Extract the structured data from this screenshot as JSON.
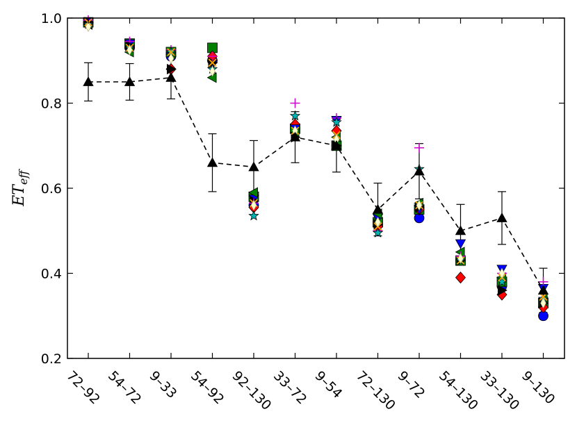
{
  "chart_data": {
    "type": "scatter",
    "title": "",
    "xlabel": "",
    "ylabel": {
      "main": "ET",
      "sub": "eff"
    },
    "ylim": [
      0.2,
      1.0
    ],
    "yticks": [
      "0.2",
      "0.4",
      "0.6",
      "0.8",
      "1.0"
    ],
    "categories": [
      "72–92",
      "54–72",
      "9–33",
      "54–92",
      "92–130",
      "33–72",
      "9–54",
      "72–130",
      "9–72",
      "54–130",
      "33–130",
      "9–130"
    ],
    "grid": false,
    "legend": "none",
    "series": [
      {
        "marker": "triangle-up",
        "color": "#000000",
        "line": "dashed",
        "values": [
          0.85,
          0.85,
          0.86,
          0.66,
          0.65,
          0.72,
          0.7,
          0.55,
          0.64,
          0.5,
          0.53,
          0.36
        ],
        "errors": [
          0.045,
          0.043,
          0.05,
          0.068,
          0.062,
          0.06,
          0.062,
          0.062,
          0.065,
          0.062,
          0.062,
          0.052
        ]
      },
      {
        "marker": "circle",
        "color": "#0000ff",
        "values": [
          0.99,
          0.93,
          0.91,
          0.9,
          0.56,
          0.74,
          0.7,
          0.52,
          0.53,
          0.43,
          0.37,
          0.3
        ]
      },
      {
        "marker": "square",
        "color": "#008000",
        "values": [
          0.99,
          0.94,
          0.92,
          0.93,
          0.58,
          0.74,
          0.7,
          0.52,
          0.55,
          0.43,
          0.38,
          0.33
        ]
      },
      {
        "marker": "diamond",
        "color": "#ff0000",
        "values": [
          0.99,
          0.93,
          0.88,
          0.91,
          0.555,
          0.75,
          0.735,
          0.51,
          0.55,
          0.39,
          0.35,
          0.32
        ]
      },
      {
        "marker": "triangle-down",
        "color": "#0000ff",
        "values": [
          0.99,
          0.94,
          0.91,
          0.89,
          0.575,
          0.74,
          0.76,
          0.53,
          0.55,
          0.47,
          0.41,
          0.365
        ]
      },
      {
        "marker": "triangle-left",
        "color": "#008000",
        "values": [
          0.985,
          0.92,
          0.915,
          0.86,
          0.59,
          0.73,
          0.72,
          0.54,
          0.565,
          0.45,
          0.39,
          0.34
        ]
      },
      {
        "marker": "triangle-right",
        "color": "#000000",
        "values": [
          0.99,
          0.935,
          0.88,
          0.895,
          0.57,
          0.72,
          0.7,
          0.515,
          0.555,
          0.43,
          0.36,
          0.33
        ]
      },
      {
        "marker": "plus",
        "color": "#cc00cc",
        "values": [
          0.995,
          0.945,
          0.925,
          0.91,
          0.565,
          0.8,
          0.765,
          0.5,
          0.695,
          0.44,
          0.4,
          0.38
        ]
      },
      {
        "marker": "star",
        "color": "#00b3b3",
        "values": [
          0.985,
          0.93,
          0.92,
          0.88,
          0.535,
          0.77,
          0.755,
          0.495,
          0.645,
          0.43,
          0.38,
          0.34
        ]
      },
      {
        "marker": "cross",
        "color": "#ffa500",
        "values": [
          0.99,
          0.93,
          0.92,
          0.895,
          0.565,
          0.735,
          0.725,
          0.51,
          0.56,
          0.43,
          0.39,
          0.345
        ]
      },
      {
        "marker": "thin-diamond",
        "color": "#ffffcc",
        "values": [
          0.98,
          0.925,
          0.905,
          0.875,
          0.56,
          0.735,
          0.715,
          0.52,
          0.56,
          0.435,
          0.4,
          0.33
        ]
      }
    ]
  }
}
